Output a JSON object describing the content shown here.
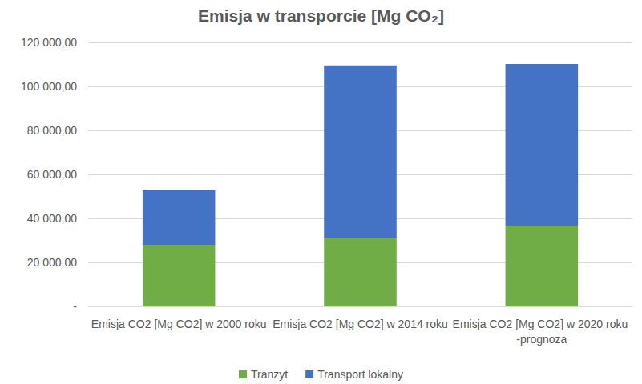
{
  "chart_data": {
    "type": "bar",
    "title": "Emisja w transporcie [Mg CO₂]",
    "categories": [
      "Emisja CO2 [Mg CO2] w 2000 roku",
      "Emisja CO2 [Mg CO2] w 2014 roku",
      "Emisja CO2 [Mg CO2] w 2020 roku -prognoza"
    ],
    "series": [
      {
        "name": "Tranzyt",
        "color": "#70ad47",
        "values": [
          28000,
          31300,
          36700
        ]
      },
      {
        "name": "Transport lokalny",
        "color": "#4472c4",
        "values": [
          24700,
          78200,
          73500
        ]
      }
    ],
    "stacked": true,
    "ylim": [
      0,
      120000
    ],
    "yticks": [
      {
        "value": 0,
        "label": "-"
      },
      {
        "value": 20000,
        "label": "20 000,00"
      },
      {
        "value": 40000,
        "label": "40 000,00"
      },
      {
        "value": 60000,
        "label": "60 000,00"
      },
      {
        "value": 80000,
        "label": "80 000,00"
      },
      {
        "value": 100000,
        "label": "100 000,00"
      },
      {
        "value": 120000,
        "label": "120 000,00"
      }
    ],
    "grid": true,
    "legend": "bottom"
  }
}
